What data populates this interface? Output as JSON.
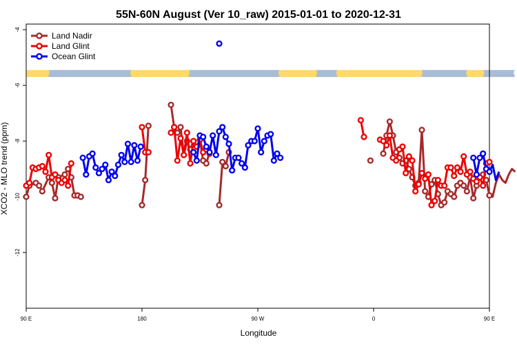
{
  "chart_data": {
    "type": "line",
    "title": "55N-60N August (Ver 10_raw)   2015-01-01 to 2020-12-31",
    "xlabel": "Longitude",
    "ylabel": "XCO2 - MLO trend (ppm)",
    "xlim": [
      90,
      450
    ],
    "ylim": [
      -14,
      -3.8
    ],
    "x_ticks": [
      {
        "value": 90,
        "label": "90 E"
      },
      {
        "value": 180,
        "label": "180"
      },
      {
        "value": 270,
        "label": "90 W"
      },
      {
        "value": 360,
        "label": "0"
      },
      {
        "value": 450,
        "label": "90 E"
      },
      {
        "value": 540,
        "label": "180"
      }
    ],
    "y_ticks": [
      {
        "value": -4,
        "label": "-4"
      },
      {
        "value": -6,
        "label": "-6"
      },
      {
        "value": -8,
        "label": "-8"
      },
      {
        "value": -10,
        "label": "-10"
      },
      {
        "value": -12,
        "label": "-12"
      }
    ],
    "grid": false,
    "legend": "top-left",
    "map_strip": {
      "y_top": -5.45,
      "y_bottom": -5.7,
      "land_color": "#ffd86e",
      "ocean_color": "#a8bcd8"
    },
    "series": [
      {
        "name": "Land Nadir",
        "color": "#a52a2a",
        "points": [
          [
            90,
            -10.0
          ],
          [
            92.5,
            -9.6
          ],
          [
            97.5,
            -9.5
          ],
          [
            100,
            -9.6
          ],
          [
            102.5,
            -9.8
          ],
          [
            107.5,
            -9.3
          ],
          [
            110,
            -9.5
          ],
          [
            112.5,
            -10.05
          ],
          [
            115,
            -9.3
          ],
          [
            120,
            -9.2
          ],
          [
            122.5,
            -9.0
          ],
          [
            125,
            -9.3
          ],
          [
            127.5,
            -9.95
          ],
          [
            130,
            -9.95
          ],
          [
            132.5,
            -10.0
          ],
          null,
          [
            180,
            -10.3
          ],
          [
            182.5,
            -9.4
          ],
          [
            185,
            -7.45
          ],
          null,
          [
            202.5,
            -6.7
          ],
          [
            205,
            -7.5
          ],
          [
            207.5,
            -7.7
          ],
          [
            210,
            -7.5
          ],
          [
            212.5,
            -8.5
          ],
          [
            215,
            -8.0
          ],
          [
            217.5,
            -8.3
          ],
          [
            220,
            -8.0
          ],
          [
            222.5,
            -8.2
          ],
          [
            225,
            -7.95
          ],
          [
            227.5,
            -8.7
          ],
          [
            230,
            -8.8
          ],
          [
            232.5,
            -8.4
          ],
          null,
          [
            240,
            -10.3
          ],
          [
            242.5,
            -8.75
          ],
          [
            245,
            -8.9
          ],
          [
            247.5,
            -8.4
          ],
          null,
          [
            357.5,
            -8.7
          ],
          null,
          [
            367.5,
            -8.45
          ],
          [
            370,
            -7.8
          ],
          [
            372.5,
            -7.3
          ],
          [
            375,
            -7.8
          ],
          [
            377.5,
            -8.4
          ],
          [
            380,
            -8.6
          ],
          [
            382.5,
            -8.8
          ],
          [
            385,
            -8.7
          ],
          [
            387.5,
            -9.0
          ],
          [
            390,
            -9.3
          ],
          [
            392.5,
            -9.6
          ],
          [
            395,
            -9.5
          ],
          [
            397.5,
            -7.6
          ],
          [
            400,
            -9.8
          ],
          [
            402.5,
            -10.0
          ],
          [
            405,
            -9.55
          ],
          [
            407.5,
            -9.4
          ],
          [
            410,
            -9.9
          ],
          [
            412.5,
            -10.3
          ],
          [
            415,
            -10.2
          ],
          [
            417.5,
            -9.8
          ],
          [
            420,
            -9.9
          ],
          [
            422.5,
            -10.0
          ],
          [
            425,
            -9.6
          ],
          [
            427.5,
            -9.5
          ],
          [
            430,
            -9.6
          ],
          [
            432.5,
            -9.8
          ],
          [
            435,
            -9.3
          ],
          [
            437.5,
            -10.05
          ],
          [
            440,
            -9.6
          ],
          [
            442.5,
            -9.3
          ],
          [
            445,
            -9.2
          ],
          [
            447.5,
            -9.4
          ],
          [
            450,
            -9.95
          ],
          [
            452.5,
            -10.0
          ],
          [
            455,
            -9.5
          ],
          [
            457.5,
            -9.2
          ],
          [
            460,
            -9.4
          ],
          [
            462.5,
            -9.5
          ],
          [
            465,
            -9.2
          ],
          [
            467.5,
            -9.0
          ],
          [
            470,
            -9.1
          ]
        ]
      },
      {
        "name": "Land Glint",
        "color": "#ee0000",
        "points": [
          [
            90,
            -9.6
          ],
          [
            92.5,
            -9.5
          ],
          [
            95,
            -8.95
          ],
          [
            97.5,
            -9.0
          ],
          [
            100,
            -8.95
          ],
          [
            102.5,
            -8.9
          ],
          [
            105,
            -9.1
          ],
          [
            107.5,
            -8.5
          ],
          [
            110,
            -9.3
          ],
          [
            112.5,
            -9.2
          ],
          [
            115,
            -9.4
          ],
          [
            117.5,
            -9.5
          ],
          [
            120,
            -9.4
          ],
          [
            122.5,
            -9.6
          ],
          [
            125,
            -8.8
          ],
          null,
          [
            180,
            -7.5
          ],
          [
            182.5,
            -8.4
          ],
          [
            185,
            -8.4
          ],
          null,
          [
            202.5,
            -7.7
          ],
          [
            205,
            -7.5
          ],
          [
            207.5,
            -8.7
          ],
          [
            210,
            -7.9
          ],
          [
            212.5,
            -8.5
          ],
          [
            215,
            -7.7
          ],
          [
            217.5,
            -8.8
          ],
          [
            220,
            -8.0
          ],
          [
            222.5,
            -8.2
          ],
          [
            225,
            -7.95
          ],
          [
            227.5,
            -8.4
          ],
          [
            230,
            -8.3
          ],
          [
            232.5,
            -8.45
          ],
          null,
          [
            350,
            -7.25
          ],
          [
            352.5,
            -7.85
          ],
          null,
          [
            365,
            -7.95
          ],
          [
            367.5,
            -8.0
          ],
          [
            370,
            -8.15
          ],
          [
            372.5,
            -7.8
          ],
          [
            375,
            -8.6
          ],
          [
            377.5,
            -8.7
          ],
          [
            380,
            -8.3
          ],
          [
            382.5,
            -8.2
          ],
          [
            385,
            -9.15
          ],
          [
            387.5,
            -8.55
          ],
          [
            390,
            -8.7
          ],
          [
            392.5,
            -9.8
          ],
          [
            395,
            -9.55
          ],
          [
            397.5,
            -9.15
          ],
          [
            400,
            -9.35
          ],
          [
            402.5,
            -9.2
          ],
          [
            405,
            -10.3
          ],
          [
            407.5,
            -10.15
          ],
          [
            410,
            -9.4
          ],
          [
            412.5,
            -9.6
          ],
          [
            415,
            -9.6
          ],
          [
            417.5,
            -8.95
          ],
          [
            420,
            -8.95
          ],
          [
            422.5,
            -9.25
          ],
          [
            425,
            -8.95
          ],
          [
            427.5,
            -9.1
          ],
          [
            430,
            -8.55
          ],
          [
            432.5,
            -9.2
          ],
          [
            435,
            -9.1
          ],
          [
            437.5,
            -9.35
          ],
          [
            440,
            -9.45
          ],
          [
            442.5,
            -9.3
          ],
          [
            445,
            -9.6
          ],
          [
            447.5,
            -8.8
          ],
          [
            450,
            -8.75
          ]
        ]
      },
      {
        "name": "Ocean Glint",
        "color": "#0000ee",
        "points": [
          [
            134,
            -8.6
          ],
          [
            136.5,
            -9.2
          ],
          [
            139,
            -8.55
          ],
          [
            141.5,
            -8.45
          ],
          [
            144,
            -8.95
          ],
          [
            146.5,
            -9.15
          ],
          [
            149,
            -9.0
          ],
          [
            151.5,
            -8.85
          ],
          [
            154,
            -9.4
          ],
          [
            156.5,
            -9.1
          ],
          [
            159,
            -9.25
          ],
          [
            161.5,
            -8.85
          ],
          [
            164,
            -8.5
          ],
          [
            166.5,
            -8.75
          ],
          [
            169,
            -8.1
          ],
          [
            171.5,
            -8.75
          ],
          [
            174,
            -8.15
          ],
          [
            176.5,
            -8.7
          ],
          [
            179,
            -8.2
          ],
          null,
          [
            220,
            -8.4
          ],
          [
            222.5,
            -8.7
          ],
          [
            225,
            -7.8
          ],
          [
            227.5,
            -7.85
          ],
          [
            230,
            -8.2
          ],
          [
            232.5,
            -8.4
          ],
          [
            235,
            -7.8
          ],
          [
            237.5,
            -8.5
          ],
          [
            240,
            -7.65
          ],
          [
            242.5,
            -7.5
          ],
          [
            245,
            -7.85
          ],
          [
            247.5,
            -8.1
          ],
          [
            250,
            -9.05
          ],
          [
            252.5,
            -8.6
          ],
          [
            255,
            -8.6
          ],
          [
            257.5,
            -8.8
          ],
          [
            260,
            -8.95
          ],
          [
            262.5,
            -8.15
          ],
          [
            265,
            -8.0
          ],
          [
            267.5,
            -8.0
          ],
          [
            270,
            -7.55
          ],
          [
            272.5,
            -8.4
          ],
          [
            275,
            -8.0
          ],
          [
            277.5,
            -7.8
          ],
          [
            280,
            -7.75
          ],
          [
            282.5,
            -8.7
          ],
          [
            285,
            -8.45
          ],
          [
            287.5,
            -8.6
          ],
          null,
          [
            437.5,
            -8.6
          ],
          [
            440,
            -9.2
          ],
          [
            442.5,
            -8.6
          ],
          [
            445,
            -8.45
          ],
          [
            447.5,
            -9.0
          ],
          [
            450,
            -9.1
          ],
          [
            452.5,
            -8.85
          ],
          [
            455,
            -9.4
          ],
          [
            457.5,
            -9.1
          ]
        ]
      },
      {
        "name": "",
        "color": "#0000ee",
        "points": [
          [
            240,
            -4.5
          ]
        ]
      }
    ]
  }
}
